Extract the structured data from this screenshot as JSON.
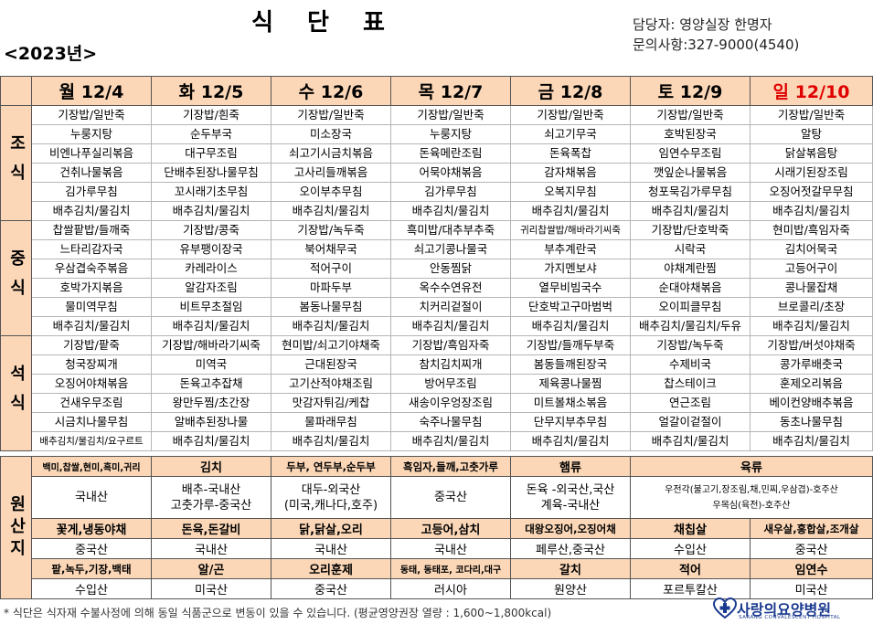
{
  "header": {
    "title": "식 단 표",
    "year": "<2023년>",
    "manager": "담당자: 영양실장 한명자",
    "inquiry": "문의사항:327-9000(4540)"
  },
  "days": [
    "월 12/4",
    "화 12/5",
    "수 12/6",
    "목 12/7",
    "금 12/8",
    "토 12/9",
    "일 12/10"
  ],
  "meals": [
    {
      "label": "조식",
      "rows": [
        [
          "기장밥/일반죽",
          "기장밥/흰죽",
          "기장밥/일반죽",
          "기장밥/일반죽",
          "기장밥/일반죽",
          "기장밥/일반죽",
          "기장밥/일반죽"
        ],
        [
          "누룽지탕",
          "순두부국",
          "미소장국",
          "누룽지탕",
          "쇠고기무국",
          "호박된장국",
          "알탕"
        ],
        [
          "비엔나푸실리볶음",
          "대구무조림",
          "쇠고기시금치볶음",
          "돈육메란조림",
          "돈육폭찹",
          "임연수무조림",
          "닭살볶음탕"
        ],
        [
          "건취나물볶음",
          "단배추된장나물무침",
          "고사리들깨볶음",
          "어묵야채볶음",
          "감자채볶음",
          "깻잎순나물볶음",
          "시래기된장조림"
        ],
        [
          "김가루무침",
          "꼬시래기초무침",
          "오이부추무침",
          "김가루무침",
          "오복지무침",
          "청포묵김가루무침",
          "오징어젓갈무무침"
        ],
        [
          "배추김치/물김치",
          "배추김치/물김치",
          "배추김치/물김치",
          "배추김치/물김치",
          "배추김치/물김치",
          "배추김치/물김치",
          "배추김치/물김치"
        ]
      ]
    },
    {
      "label": "중식",
      "rows": [
        [
          "찹쌀팥밥/들깨죽",
          "기장밥/콩죽",
          "기장밥/녹두죽",
          "흑미밥/대추부추죽",
          "귀리찹쌀밥/해바라기씨죽",
          "기장밥/단호박죽",
          "현미밥/흑임자죽"
        ],
        [
          "느타리감자국",
          "유부팽이장국",
          "북어채무국",
          "쇠고기콩나물국",
          "부추계란국",
          "시락국",
          "김치어묵국"
        ],
        [
          "우삼겹숙주볶음",
          "카레라이스",
          "적어구이",
          "안동찜닭",
          "가지멘보샤",
          "야채계란찜",
          "고등어구이"
        ],
        [
          "호박가지볶음",
          "알감자조림",
          "마파두부",
          "옥수수연유전",
          "열무비빔국수",
          "순대야채볶음",
          "콩나물잡채"
        ],
        [
          "물미역무침",
          "비트무초절임",
          "봄동나물무침",
          "치커리겉절이",
          "단호박고구마범벅",
          "오이피클무침",
          "브로콜리/초장"
        ],
        [
          "배추김치/물김치",
          "배추김치/물김치",
          "배추김치/물김치",
          "배추김치/물김치",
          "배추김치/물김치",
          "배추김치/물김치/두유",
          "배추김치/물김치"
        ]
      ]
    },
    {
      "label": "석식",
      "rows": [
        [
          "기장밥/팥죽",
          "기장밥/해바라기씨죽",
          "현미밥/쇠고기야채죽",
          "기장밥/흑임자죽",
          "기장밥/들깨두부죽",
          "기장밥/녹두죽",
          "기장밥/버섯야채죽"
        ],
        [
          "청국장찌개",
          "미역국",
          "근대된장국",
          "참치김치찌개",
          "봄동들깨된장국",
          "수제비국",
          "콩가루배춧국"
        ],
        [
          "오징어야채볶음",
          "돈육고추잡채",
          "고기산적야채조림",
          "방어무조림",
          "제육콩나물찜",
          "찹스테이크",
          "훈제오리볶음"
        ],
        [
          "건새우무조림",
          "왕만두찜/초간장",
          "맛감자튀김/케찹",
          "새송이우엉장조림",
          "미트볼채소볶음",
          "연근조림",
          "베이컨양배추볶음"
        ],
        [
          "시금치나물무침",
          "알배추된장나물",
          "물파래무침",
          "숙주나물무침",
          "단무지부추무침",
          "얼갈이겉절이",
          "동초나물무침"
        ],
        [
          "배추김치/물김치/요구르트",
          "배추김치/물김치",
          "배추김치/물김치",
          "배추김치/물김치",
          "배추김치/물김치",
          "배추김치/물김치",
          "배추김치/물김치"
        ]
      ]
    }
  ],
  "origin": {
    "label": "원산지",
    "groups": [
      {
        "heads": [
          "백미,찹쌀,현미,흑미,귀리",
          "김치",
          "두부, 연두부,순두부",
          "흑임자,들깨,고춧가루",
          "햄류",
          "육류"
        ],
        "values": [
          "국내산",
          "배추-국내산\n고춧가루-중국산",
          "대두-외국산\n(미국,캐나다,호주)",
          "중국산",
          "돈육 -외국산,국산\n계육-국내산",
          "우전각(불고기,장조림,채,민찌,우삼겹)-호주산\n우목심(육전)-호주산"
        ]
      },
      {
        "heads": [
          "꽃게,냉동야채",
          "돈육,돈갈비",
          "닭,닭살,오리",
          "고등어,삼치",
          "대왕오징어,오징어채",
          "채칩살",
          "새우살,홍합살,조개살"
        ],
        "values": [
          "중국산",
          "국내산",
          "국내산",
          "국내산",
          "페루산,중국산",
          "수입산",
          "중국산"
        ]
      },
      {
        "heads": [
          "팥,녹두,기장,백태",
          "알/곤",
          "오리훈제",
          "동태, 동태포, 코다리,대구",
          "갈치",
          "적어",
          "임연수"
        ],
        "values": [
          "수입산",
          "미국산",
          "중국산",
          "러시아",
          "원양산",
          "포르투칼산",
          "미국산"
        ]
      }
    ]
  },
  "footnote": "* 식단은 식자재 수불사정에 의해 동일 식품군으로 변동이 있을 수 있습니다. (평균영양권장 열량 : 1,600~1,800kcal)",
  "logo": {
    "name": "사랑의요양병원",
    "sub": "SARANG CONVALESCENT HOSPITAL",
    "color": "#1a3a8f"
  },
  "colors": {
    "header_fill": "#fbd7b7",
    "sunday": "#e00000"
  }
}
